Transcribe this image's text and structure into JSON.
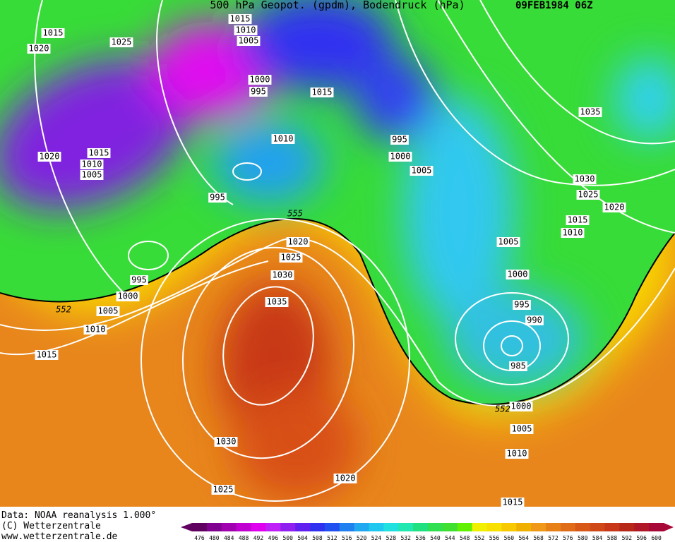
{
  "header": {
    "title": "500 hPa Geopot. (gpdm), Bodendruck (hPa)",
    "date": "09FEB1984 06Z"
  },
  "footer": {
    "lines": [
      "Data: NOAA reanalysis 1.000°",
      "(C) Wetterzentrale",
      "www.wetterzentrale.de"
    ]
  },
  "isobar_labels": [
    "1015",
    "1020",
    "1025",
    "1015",
    "1010",
    "1005",
    "1000",
    "995",
    "1015",
    "1010",
    "1020",
    "1015",
    "1010",
    "1005",
    "995",
    "995",
    "1000",
    "1005",
    "1035",
    "1030",
    "1025",
    "1020",
    "1015",
    "1010",
    "1005",
    "1000",
    "995",
    "990",
    "985",
    "1000",
    "1005",
    "1010",
    "1015",
    "1020",
    "1025",
    "1030",
    "1035",
    "995",
    "1000",
    "1005",
    "1010",
    "1015",
    "1030",
    "1025",
    "1020"
  ],
  "geopotential_labels": [
    "555",
    "552",
    "552"
  ],
  "colorbar": {
    "labels": [
      "476",
      "480",
      "484",
      "488",
      "492",
      "496",
      "500",
      "504",
      "508",
      "512",
      "516",
      "520",
      "524",
      "528",
      "532",
      "536",
      "540",
      "544",
      "548",
      "552",
      "556",
      "560",
      "564",
      "568",
      "572",
      "576",
      "580",
      "584",
      "588",
      "592",
      "596",
      "600"
    ],
    "colors": [
      "#600060",
      "#800090",
      "#a000b0",
      "#c000d0",
      "#e000f0",
      "#c020f8",
      "#9020f0",
      "#6020f0",
      "#3030f0",
      "#2050f0",
      "#2080f0",
      "#20a8f0",
      "#20c8f0",
      "#20e0e0",
      "#20e8b0",
      "#20e080",
      "#30e050",
      "#40e030",
      "#60f000",
      "#f0f000",
      "#f8e000",
      "#f8c800",
      "#f0b000",
      "#f09818",
      "#e88018",
      "#e06c18",
      "#d85818",
      "#d04818",
      "#c83818",
      "#b82818",
      "#b01828",
      "#a80838"
    ]
  }
}
